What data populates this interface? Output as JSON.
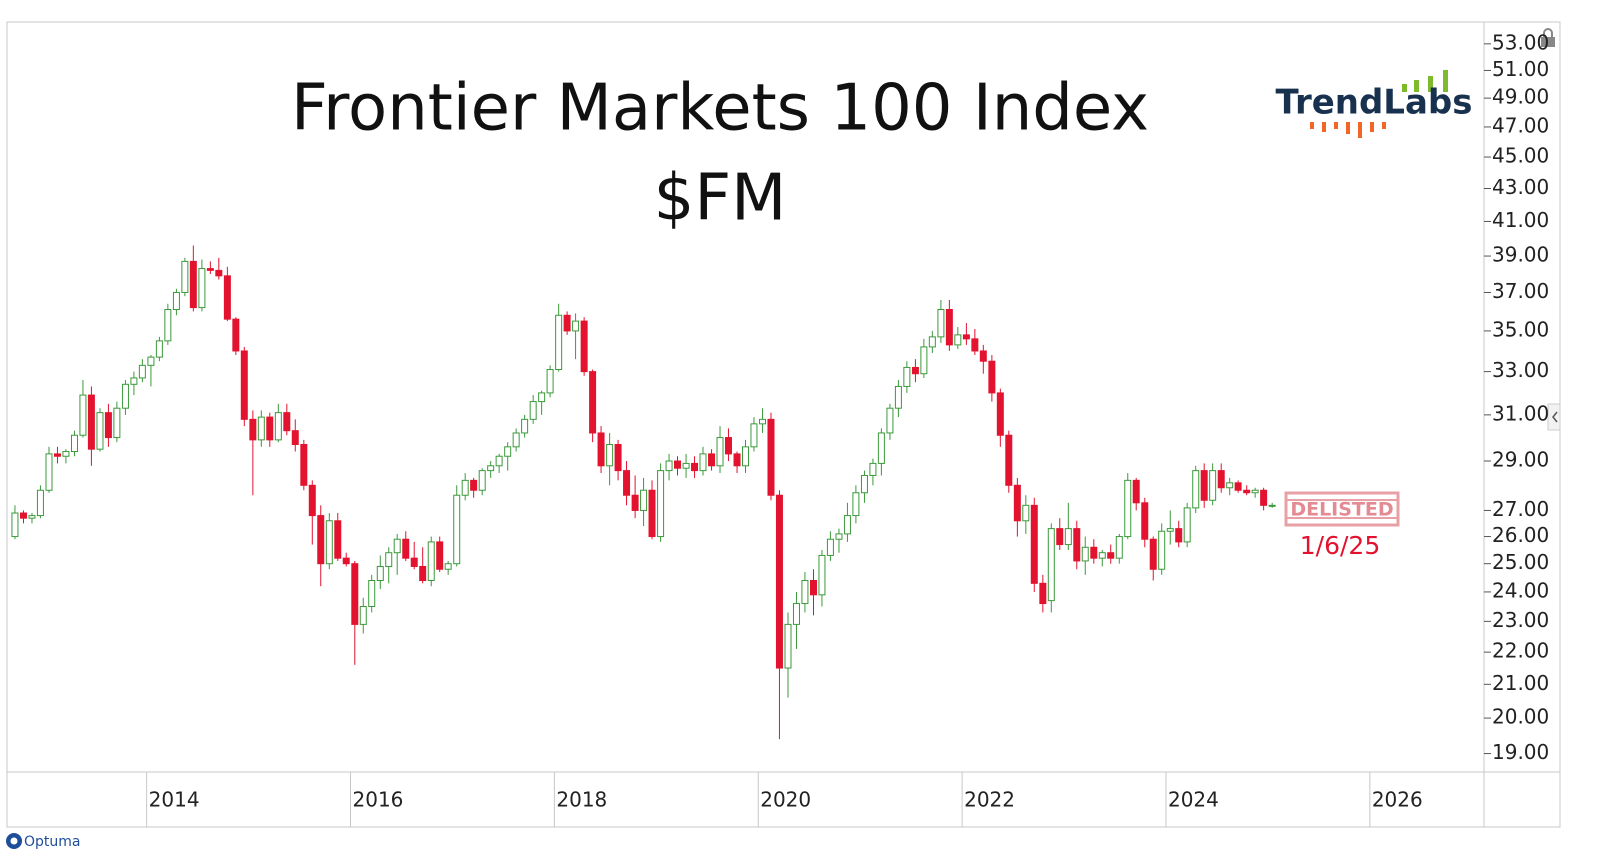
{
  "chart_data": {
    "type": "candlestick",
    "title": "Frontier Markets 100 Index",
    "subtitle": "$FM",
    "annotations": [
      "DELISTED",
      "1/6/25"
    ],
    "up_color": "#3a9a3a",
    "down_color": "#e3122f",
    "log_scale": true,
    "xlim": [
      2012.63,
      2027.12
    ],
    "ylim": [
      18.5,
      54.7
    ],
    "xticks": [
      2014,
      2016,
      2018,
      2020,
      2022,
      2024,
      2026
    ],
    "yticks": [
      {
        "value": 19,
        "label": "19.00"
      },
      {
        "value": 20,
        "label": "20.00"
      },
      {
        "value": 21,
        "label": "21.00"
      },
      {
        "value": 22,
        "label": "22.00"
      },
      {
        "value": 23,
        "label": "23.00"
      },
      {
        "value": 24,
        "label": "24.00"
      },
      {
        "value": 25,
        "label": "25.00"
      },
      {
        "value": 26,
        "label": "26.00"
      },
      {
        "value": 27,
        "label": "27.00"
      },
      {
        "value": 29,
        "label": "29.00"
      },
      {
        "value": 31,
        "label": "31.00"
      },
      {
        "value": 33,
        "label": "33.00"
      },
      {
        "value": 35,
        "label": "35.00"
      },
      {
        "value": 37,
        "label": "37.00"
      },
      {
        "value": 39,
        "label": "39.00"
      },
      {
        "value": 41,
        "label": "41.00"
      },
      {
        "value": 43,
        "label": "43.00"
      },
      {
        "value": 45,
        "label": "45.00"
      },
      {
        "value": 47,
        "label": "47.00"
      },
      {
        "value": 49,
        "label": "49.00"
      },
      {
        "value": 51,
        "label": "51.00"
      },
      {
        "value": 53,
        "label": "53.00"
      }
    ],
    "x": [
      2012.708,
      2012.792,
      2012.875,
      2012.958,
      2013.042,
      2013.125,
      2013.208,
      2013.292,
      2013.375,
      2013.458,
      2013.542,
      2013.625,
      2013.708,
      2013.792,
      2013.875,
      2013.958,
      2014.042,
      2014.125,
      2014.208,
      2014.292,
      2014.375,
      2014.458,
      2014.542,
      2014.625,
      2014.708,
      2014.792,
      2014.875,
      2014.958,
      2015.042,
      2015.125,
      2015.208,
      2015.292,
      2015.375,
      2015.458,
      2015.542,
      2015.625,
      2015.708,
      2015.792,
      2015.875,
      2015.958,
      2016.042,
      2016.125,
      2016.208,
      2016.292,
      2016.375,
      2016.458,
      2016.542,
      2016.625,
      2016.708,
      2016.792,
      2016.875,
      2016.958,
      2017.042,
      2017.125,
      2017.208,
      2017.292,
      2017.375,
      2017.458,
      2017.542,
      2017.625,
      2017.708,
      2017.792,
      2017.875,
      2017.958,
      2018.042,
      2018.125,
      2018.208,
      2018.292,
      2018.375,
      2018.458,
      2018.542,
      2018.625,
      2018.708,
      2018.792,
      2018.875,
      2018.958,
      2019.042,
      2019.125,
      2019.208,
      2019.292,
      2019.375,
      2019.458,
      2019.542,
      2019.625,
      2019.708,
      2019.792,
      2019.875,
      2019.958,
      2020.042,
      2020.125,
      2020.208,
      2020.292,
      2020.375,
      2020.458,
      2020.542,
      2020.625,
      2020.708,
      2020.792,
      2020.875,
      2020.958,
      2021.042,
      2021.125,
      2021.208,
      2021.292,
      2021.375,
      2021.458,
      2021.542,
      2021.625,
      2021.708,
      2021.792,
      2021.875,
      2021.958,
      2022.042,
      2022.125,
      2022.208,
      2022.292,
      2022.375,
      2022.458,
      2022.542,
      2022.625,
      2022.708,
      2022.792,
      2022.875,
      2022.958,
      2023.042,
      2023.125,
      2023.208,
      2023.292,
      2023.375,
      2023.458,
      2023.542,
      2023.625,
      2023.708,
      2023.792,
      2023.875,
      2023.958,
      2024.042,
      2024.125,
      2024.208,
      2024.292,
      2024.375,
      2024.458,
      2024.542,
      2024.625,
      2024.708,
      2024.792,
      2024.875,
      2024.958,
      2025.042
    ],
    "open": [
      26.0,
      26.9,
      26.7,
      26.8,
      27.8,
      29.3,
      29.2,
      29.4,
      30.1,
      31.9,
      29.5,
      31.1,
      30.0,
      31.3,
      32.4,
      32.7,
      33.3,
      33.7,
      34.5,
      36.1,
      37.0,
      38.7,
      36.2,
      38.3,
      38.2,
      37.9,
      35.6,
      34.0,
      30.8,
      29.9,
      30.9,
      29.9,
      31.1,
      30.3,
      29.7,
      28.0,
      26.8,
      25.0,
      26.6,
      25.2,
      25.0,
      22.9,
      23.5,
      24.4,
      24.9,
      25.4,
      25.9,
      25.2,
      24.9,
      24.4,
      25.8,
      24.8,
      25.0,
      27.6,
      28.2,
      27.8,
      28.6,
      28.8,
      29.2,
      29.6,
      30.2,
      30.8,
      31.6,
      32.0,
      33.1,
      35.8,
      35.0,
      35.5,
      33.0,
      30.2,
      28.8,
      29.7,
      28.6,
      27.6,
      27.0,
      27.8,
      26.0,
      28.6,
      29.0,
      28.7,
      28.9,
      28.6,
      29.3,
      28.8,
      30.0,
      29.3,
      28.8,
      29.6,
      30.6,
      30.8,
      27.6,
      21.5,
      22.9,
      23.6,
      24.4,
      23.9,
      25.3,
      25.9,
      26.1,
      26.8,
      27.7,
      28.4,
      28.9,
      30.2,
      31.3,
      32.3,
      33.2,
      32.9,
      34.2,
      34.7,
      36.1,
      34.3,
      34.8,
      34.6,
      34.0,
      33.5,
      32.0,
      30.1,
      28.0,
      26.6,
      27.2,
      24.3,
      23.7,
      26.3,
      25.7,
      26.3,
      25.1,
      25.6,
      25.2,
      25.4,
      25.2,
      26.0,
      28.2,
      27.3,
      25.9,
      24.8,
      26.2,
      26.3,
      25.8,
      27.1,
      28.6,
      27.4,
      28.6,
      27.9,
      28.1,
      27.8,
      27.7,
      27.8,
      27.2
    ],
    "high": [
      27.2,
      27.0,
      26.9,
      28.0,
      29.6,
      29.6,
      29.5,
      30.3,
      32.6,
      32.3,
      31.3,
      31.5,
      31.6,
      32.6,
      33.0,
      33.6,
      33.8,
      34.7,
      36.4,
      37.2,
      38.9,
      39.6,
      38.8,
      38.7,
      38.9,
      38.4,
      35.7,
      34.2,
      31.2,
      31.2,
      31.1,
      31.5,
      31.5,
      30.8,
      29.9,
      28.2,
      27.2,
      26.9,
      26.9,
      25.4,
      25.1,
      23.8,
      24.6,
      25.3,
      25.6,
      26.1,
      26.2,
      25.8,
      25.6,
      26.0,
      26.0,
      25.1,
      28.0,
      28.5,
      28.3,
      28.7,
      29.0,
      29.3,
      29.8,
      30.4,
      31.0,
      31.9,
      32.1,
      33.3,
      36.4,
      36.0,
      35.9,
      35.7,
      33.1,
      30.5,
      30.2,
      29.9,
      29.0,
      28.4,
      28.3,
      28.2,
      28.9,
      29.3,
      29.2,
      29.3,
      29.2,
      29.6,
      29.5,
      30.5,
      30.4,
      29.4,
      29.9,
      30.9,
      31.3,
      31.1,
      27.8,
      23.3,
      24.0,
      24.7,
      24.8,
      25.5,
      26.2,
      26.3,
      27.3,
      28.0,
      28.6,
      29.1,
      30.4,
      31.5,
      32.6,
      33.5,
      33.6,
      34.6,
      35.0,
      36.6,
      36.6,
      35.2,
      35.4,
      35.1,
      34.3,
      33.8,
      32.2,
      30.3,
      28.3,
      27.6,
      27.5,
      24.6,
      26.5,
      26.7,
      27.3,
      26.6,
      26.0,
      25.9,
      25.5,
      25.7,
      26.1,
      28.5,
      28.3,
      27.5,
      26.0,
      26.5,
      27.0,
      26.6,
      27.3,
      28.8,
      28.9,
      28.9,
      28.9,
      28.3,
      28.2,
      28.0,
      27.9,
      27.9,
      27.3
    ],
    "low": [
      25.9,
      26.5,
      26.5,
      26.7,
      27.7,
      28.9,
      28.9,
      29.2,
      30.0,
      28.8,
      29.4,
      29.6,
      29.8,
      31.0,
      31.9,
      32.5,
      32.3,
      33.5,
      34.3,
      35.8,
      36.8,
      36.0,
      36.0,
      38.0,
      37.7,
      35.5,
      33.8,
      30.5,
      27.6,
      29.6,
      29.6,
      29.8,
      30.1,
      29.4,
      27.8,
      25.7,
      24.2,
      24.8,
      25.1,
      24.9,
      21.6,
      22.6,
      23.3,
      24.1,
      24.3,
      24.6,
      25.1,
      24.8,
      24.3,
      24.2,
      24.7,
      24.6,
      24.9,
      27.4,
      27.5,
      27.6,
      28.3,
      28.5,
      28.6,
      29.4,
      30.0,
      30.6,
      31.0,
      31.8,
      33.0,
      34.8,
      33.6,
      32.8,
      29.8,
      28.5,
      28.0,
      28.2,
      27.2,
      26.7,
      26.4,
      25.9,
      25.8,
      28.2,
      28.4,
      28.3,
      28.3,
      28.4,
      28.6,
      28.5,
      29.0,
      28.5,
      28.5,
      29.4,
      30.2,
      27.4,
      19.4,
      20.6,
      22.1,
      23.3,
      23.2,
      23.5,
      25.1,
      25.4,
      25.8,
      26.5,
      27.3,
      28.0,
      28.4,
      29.9,
      30.9,
      32.0,
      32.5,
      32.7,
      33.9,
      34.4,
      34.0,
      34.1,
      34.3,
      33.8,
      32.9,
      31.6,
      29.6,
      27.7,
      26.0,
      26.1,
      24.0,
      23.3,
      23.3,
      25.5,
      25.5,
      24.8,
      24.6,
      25.0,
      24.9,
      25.0,
      25.0,
      25.9,
      27.0,
      25.6,
      24.4,
      24.6,
      25.7,
      25.6,
      25.6,
      26.9,
      27.1,
      27.2,
      27.7,
      27.6,
      27.7,
      27.6,
      27.5,
      27.0,
      27.1
    ],
    "close": [
      26.9,
      26.7,
      26.8,
      27.8,
      29.3,
      29.2,
      29.4,
      30.1,
      31.9,
      29.5,
      31.1,
      30.0,
      31.3,
      32.4,
      32.7,
      33.3,
      33.7,
      34.5,
      36.1,
      37.0,
      38.7,
      36.2,
      38.3,
      38.2,
      37.9,
      35.6,
      34.0,
      30.8,
      29.9,
      30.9,
      29.9,
      31.1,
      30.3,
      29.7,
      28.0,
      26.8,
      25.0,
      26.6,
      25.2,
      25.0,
      22.9,
      23.5,
      24.4,
      24.9,
      25.4,
      25.9,
      25.2,
      24.9,
      24.4,
      25.8,
      24.8,
      25.0,
      27.6,
      28.2,
      27.8,
      28.6,
      28.8,
      29.2,
      29.6,
      30.2,
      30.8,
      31.6,
      32.0,
      33.1,
      35.8,
      35.0,
      35.5,
      33.0,
      30.2,
      28.8,
      29.7,
      28.6,
      27.6,
      27.0,
      27.8,
      26.0,
      28.6,
      29.0,
      28.7,
      28.9,
      28.6,
      29.3,
      28.8,
      30.0,
      29.3,
      28.8,
      29.6,
      30.6,
      30.8,
      27.6,
      21.5,
      22.9,
      23.6,
      24.4,
      23.9,
      25.3,
      25.9,
      26.1,
      26.8,
      27.7,
      28.4,
      28.9,
      30.2,
      31.3,
      32.3,
      33.2,
      32.9,
      34.2,
      34.7,
      36.1,
      34.3,
      34.8,
      34.6,
      34.0,
      33.5,
      32.0,
      30.1,
      28.0,
      26.6,
      27.2,
      24.3,
      23.6,
      26.3,
      25.7,
      26.3,
      25.1,
      25.6,
      25.2,
      25.4,
      25.2,
      26.0,
      28.2,
      27.3,
      25.9,
      24.8,
      26.2,
      26.3,
      25.8,
      27.1,
      28.6,
      27.4,
      28.6,
      27.9,
      28.1,
      27.8,
      27.7,
      27.8,
      27.2,
      27.2
    ]
  },
  "logo": "TrendLabs",
  "footer": "Optuma"
}
